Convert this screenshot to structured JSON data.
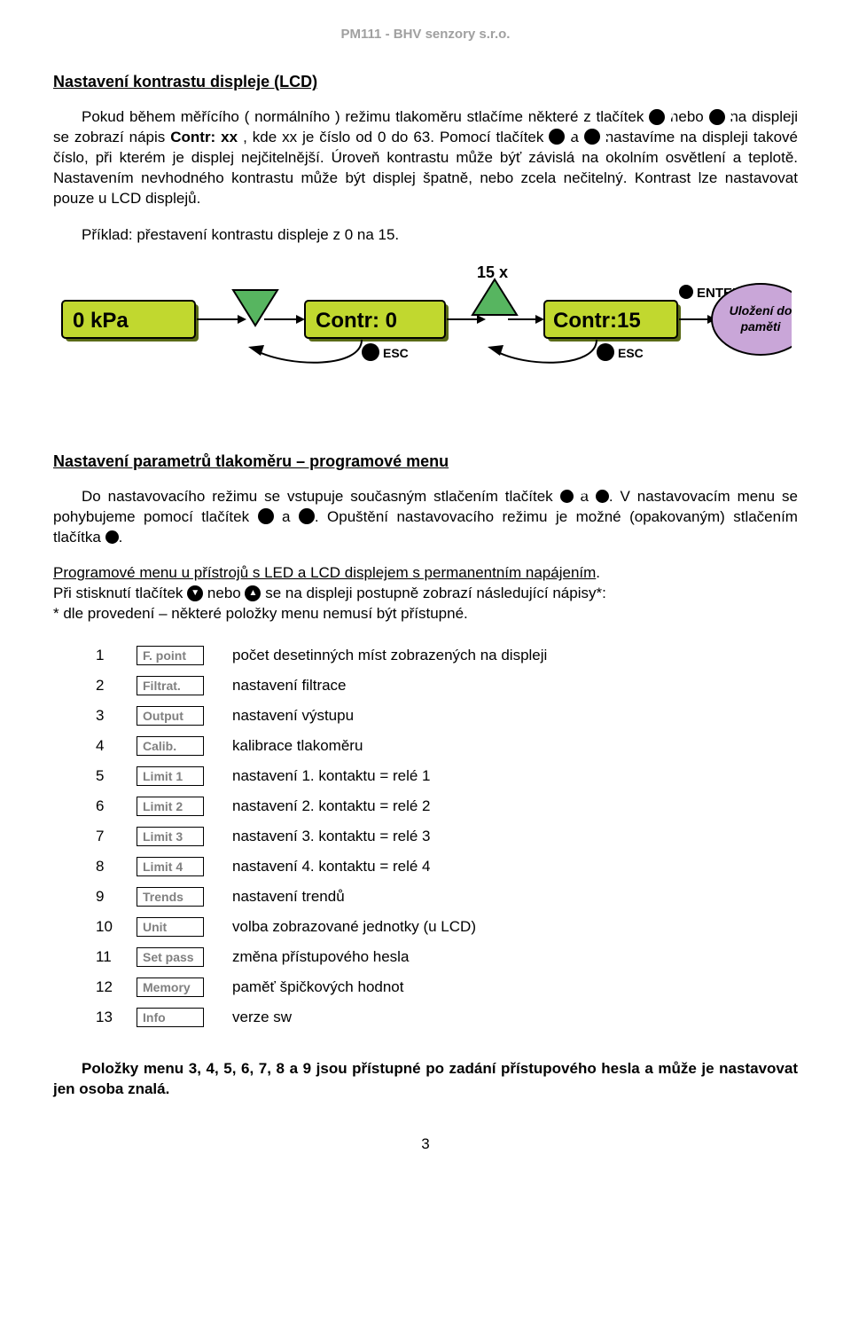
{
  "header": "PM111 - BHV senzory s.r.o.",
  "section1": {
    "title": "Nastavení kontrastu displeje (LCD)",
    "p1_a": "Pokud během měřícího ( normálního ) režimu tlakoměru stlačíme některé z tlačítek ",
    "p1_b": " nebo ",
    "p1_c": " na displeji se zobrazí nápis ",
    "p1_bold": "Contr: xx ",
    "p1_d": ", kde xx je číslo od 0 do 63. Pomocí tlačítek ",
    "p1_e": " a ",
    "p1_f": " nastavíme na displeji takové číslo, při kterém je displej nejčitelnější. Úroveň kontrastu může býť závislá na okolním osvětlení a teplotě. Nastavením nevhodného kontrastu může být displej špatně, nebo zcela nečitelný. Kontrast lze nastavovat pouze u LCD displejů.",
    "p2": "Příklad: přestavení kontrastu displeje z 0 na 15."
  },
  "diagram": {
    "lcd1": "0    kPa",
    "lcd2": "Contr:  0",
    "lcd3": "Contr:15",
    "fifteen": "15 x",
    "enter": "ENTER",
    "esc": "ESC",
    "save1": "Uložení do",
    "save2": "paměti",
    "colors": {
      "lcd_fill": "#c1d82f",
      "lcd_shadow": "#5a6b17",
      "triangle": "#57b560",
      "ellipse": "#c9a6d8"
    }
  },
  "section2": {
    "title": "Nastavení parametrů tlakoměru – programové menu",
    "p1_a": "Do nastavovacího režimu se vstupuje současným stlačením tlačítek ",
    "p1_b": " a ",
    "p1_c": ". V nastavovacím menu se pohybujeme pomocí tlačítek ",
    "p1_d": " a ",
    "p1_e": ". Opuštění nastavovacího režimu je možné (opakovaným) stlačením tlačítka ",
    "p1_f": ".",
    "p2u": "Programové menu u přístrojů s LED a LCD displejem s permanentním napájením",
    "p2_a": "Při stisknutí tlačítek ",
    "p2_b": " nebo ",
    "p2_c": " se na displeji postupně zobrazí následující nápisy*:",
    "p2_d": "* dle provedení – některé položky menu nemusí být přístupné."
  },
  "menu": [
    {
      "n": "1",
      "box": "F. point",
      "desc": "počet desetinných míst zobrazených na displeji"
    },
    {
      "n": "2",
      "box": "Filtrat.",
      "desc": "nastavení filtrace"
    },
    {
      "n": "3",
      "box": "Output",
      "desc": "nastavení výstupu"
    },
    {
      "n": "4",
      "box": "Calib.",
      "desc": "kalibrace tlakoměru"
    },
    {
      "n": "5",
      "box": "Limit 1",
      "desc": "nastavení 1. kontaktu  = relé 1"
    },
    {
      "n": "6",
      "box": "Limit 2",
      "desc": "nastavení 2. kontaktu  = relé 2"
    },
    {
      "n": "7",
      "box": "Limit 3",
      "desc": "nastavení 3. kontaktu  = relé 3"
    },
    {
      "n": "8",
      "box": "Limit 4",
      "desc": "nastavení 4. kontaktu  = relé 4"
    },
    {
      "n": "9",
      "box": "Trends",
      "desc": "nastavení trendů"
    },
    {
      "n": "10",
      "box": "Unit",
      "desc": "volba zobrazované jednotky (u LCD)"
    },
    {
      "n": "11",
      "box": "Set pass",
      "desc": "změna přístupového hesla"
    },
    {
      "n": "12",
      "box": "Memory",
      "desc": "paměť špičkových hodnot"
    },
    {
      "n": "13",
      "box": "Info",
      "desc": "verze sw"
    }
  ],
  "footer_p": "Položky menu 3, 4, 5, 6, 7, 8 a 9 jsou přístupné po zadání přístupového hesla a může je nastavovat jen osoba znalá.",
  "page_number": "3",
  "icons": {
    "down": "▼",
    "up": "▲",
    "esc": "ESC",
    "enter": "↵"
  }
}
